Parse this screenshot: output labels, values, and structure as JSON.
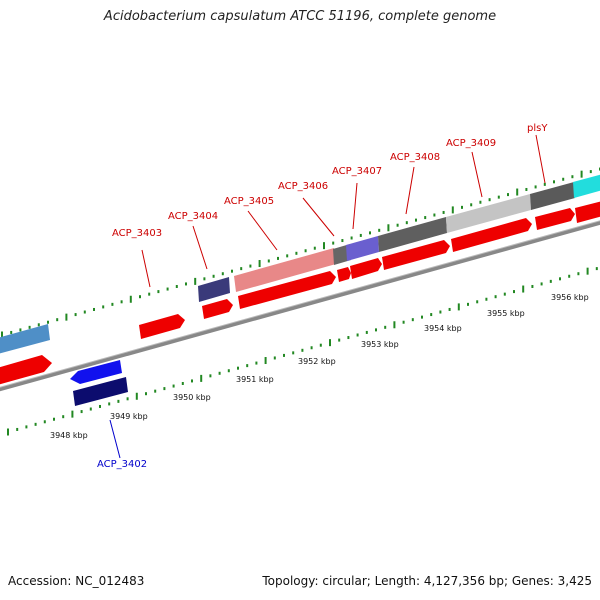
{
  "title": "Acidobacterium capsulatum ATCC 51196, complete genome",
  "accession": "Accession: NC_012483",
  "summary": "Topology: circular; Length: 4,127,356 bp; Genes: 3,425",
  "colors": {
    "backbone": "#888888",
    "forward_cds": "#ff0000",
    "label_forward": "#cc0000",
    "label_reverse": "#0000cc",
    "ticks": "#228822"
  },
  "scale_labels": [
    "3948 kbp",
    "3949 kbp",
    "3950 kbp",
    "3951 kbp",
    "3952 kbp",
    "3953 kbp",
    "3954 kbp",
    "3955 kbp",
    "3956 kbp"
  ],
  "gene_labels": [
    {
      "text": "ACP_3402",
      "strand": "reverse"
    },
    {
      "text": "ACP_3403",
      "strand": "forward"
    },
    {
      "text": "ACP_3404",
      "strand": "forward"
    },
    {
      "text": "ACP_3405",
      "strand": "forward"
    },
    {
      "text": "ACP_3406",
      "strand": "forward"
    },
    {
      "text": "ACP_3407",
      "strand": "forward"
    },
    {
      "text": "ACP_3408",
      "strand": "forward"
    },
    {
      "text": "ACP_3409",
      "strand": "forward"
    },
    {
      "text": "plsY",
      "strand": "forward"
    }
  ]
}
